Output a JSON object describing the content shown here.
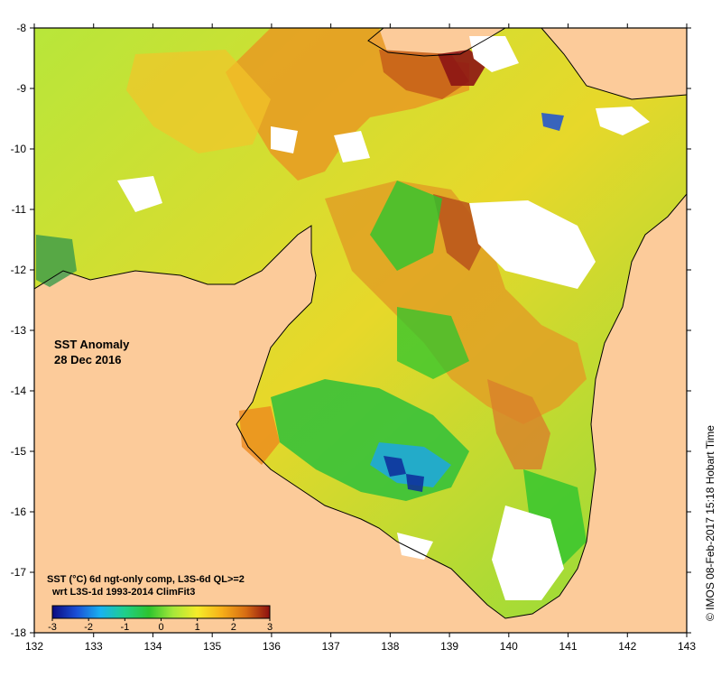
{
  "map": {
    "title_line1": "SST Anomaly",
    "title_line2": "28 Dec 2016",
    "info_line1": "SST (°C) 6d ngt-only comp, L3S-6d QL>=2",
    "info_line2": "wrt L3S-1d 1993-2014 ClimFit3",
    "credit": "© IMOS 08-Feb-2017 15:18 Hobart Time",
    "lon_ticks": [
      "132",
      "133",
      "134",
      "135",
      "136",
      "137",
      "138",
      "139",
      "140",
      "141",
      "142",
      "143"
    ],
    "lat_ticks": [
      "-8",
      "-9",
      "-10",
      "-11",
      "-12",
      "-13",
      "-14",
      "-15",
      "-16",
      "-17",
      "-18"
    ],
    "lon_range": [
      132,
      143
    ],
    "lat_range": [
      -18,
      -8
    ],
    "colors": {
      "land": "#fccb9a",
      "no_data": "#ffffff",
      "coast": "#000000"
    }
  },
  "colorbar": {
    "labels": [
      "-3",
      "-2",
      "-1",
      "0",
      "1",
      "2",
      "3"
    ],
    "range": [
      -3,
      3
    ],
    "stops": [
      "#0a0a80",
      "#1a4fd6",
      "#19b3f0",
      "#1fcf8a",
      "#2ec42e",
      "#a6e83a",
      "#f5ec2a",
      "#f7b019",
      "#d76d13",
      "#8c0f0f"
    ]
  }
}
